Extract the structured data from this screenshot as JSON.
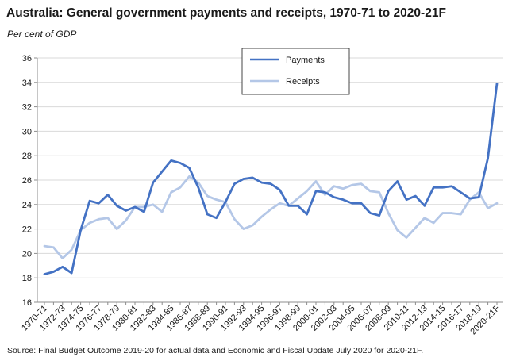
{
  "chart_data": {
    "type": "line",
    "title": "Australia: General government payments and receipts, 1970-71 to 2020-21F",
    "subtitle": "Per cent of GDP",
    "source": "Source: Final Budget Outcome 2019-20 for actual data and Economic and Fiscal Update July 2020 for 2020-21F.",
    "ylim": [
      16,
      36
    ],
    "yticks": [
      16,
      18,
      20,
      22,
      24,
      26,
      28,
      30,
      32,
      34,
      36
    ],
    "grid": true,
    "legend_position": "top-center",
    "categories": [
      "1970-71",
      "1971-72",
      "1972-73",
      "1973-74",
      "1974-75",
      "1975-76",
      "1976-77",
      "1977-78",
      "1978-79",
      "1979-80",
      "1980-81",
      "1981-82",
      "1982-83",
      "1983-84",
      "1984-85",
      "1985-86",
      "1986-87",
      "1987-88",
      "1988-89",
      "1989-90",
      "1990-91",
      "1991-92",
      "1992-93",
      "1993-94",
      "1994-95",
      "1995-96",
      "1996-97",
      "1997-98",
      "1998-99",
      "1999-00",
      "2000-01",
      "2001-02",
      "2002-03",
      "2003-04",
      "2004-05",
      "2005-06",
      "2006-07",
      "2007-08",
      "2008-09",
      "2009-10",
      "2010-11",
      "2011-12",
      "2012-13",
      "2013-14",
      "2014-15",
      "2015-16",
      "2016-17",
      "2017-18",
      "2018-19",
      "2019-20",
      "2020-21F"
    ],
    "tick_labels": [
      "1970-71",
      "1972-73",
      "1974-75",
      "1976-77",
      "1978-79",
      "1980-81",
      "1982-83",
      "1984-85",
      "1986-87",
      "1988-89",
      "1990-91",
      "1992-93",
      "1994-95",
      "1996-97",
      "1998-99",
      "2000-01",
      "2002-03",
      "2004-05",
      "2006-07",
      "2008-09",
      "2010-11",
      "2012-13",
      "2014-15",
      "2016-17",
      "2018-19",
      "2020-21F"
    ],
    "series": [
      {
        "name": "Payments",
        "color": "#4472c4",
        "values": [
          18.3,
          18.5,
          18.9,
          18.4,
          21.9,
          24.3,
          24.1,
          24.8,
          23.9,
          23.5,
          23.8,
          23.4,
          25.8,
          26.7,
          27.6,
          27.4,
          27.0,
          25.4,
          23.2,
          22.9,
          24.2,
          25.7,
          26.1,
          26.2,
          25.8,
          25.7,
          25.2,
          23.9,
          23.9,
          23.2,
          25.1,
          25.0,
          24.6,
          24.4,
          24.1,
          24.1,
          23.3,
          23.1,
          25.1,
          25.9,
          24.4,
          24.7,
          23.9,
          25.4,
          25.4,
          25.5,
          25.0,
          24.5,
          24.6,
          27.8,
          33.9
        ]
      },
      {
        "name": "Receipts",
        "color": "#b4c7e7",
        "values": [
          20.6,
          20.5,
          19.6,
          20.3,
          21.9,
          22.5,
          22.8,
          22.9,
          22.0,
          22.7,
          23.8,
          23.8,
          24.0,
          23.4,
          25.0,
          25.4,
          26.3,
          25.8,
          24.7,
          24.4,
          24.2,
          22.8,
          22.0,
          22.3,
          23.0,
          23.6,
          24.1,
          23.9,
          24.5,
          25.1,
          25.9,
          24.8,
          25.5,
          25.3,
          25.6,
          25.7,
          25.1,
          25.0,
          23.3,
          21.9,
          21.3,
          22.1,
          22.9,
          22.5,
          23.3,
          23.3,
          23.2,
          24.4,
          25.0,
          23.7,
          24.1
        ]
      }
    ]
  }
}
